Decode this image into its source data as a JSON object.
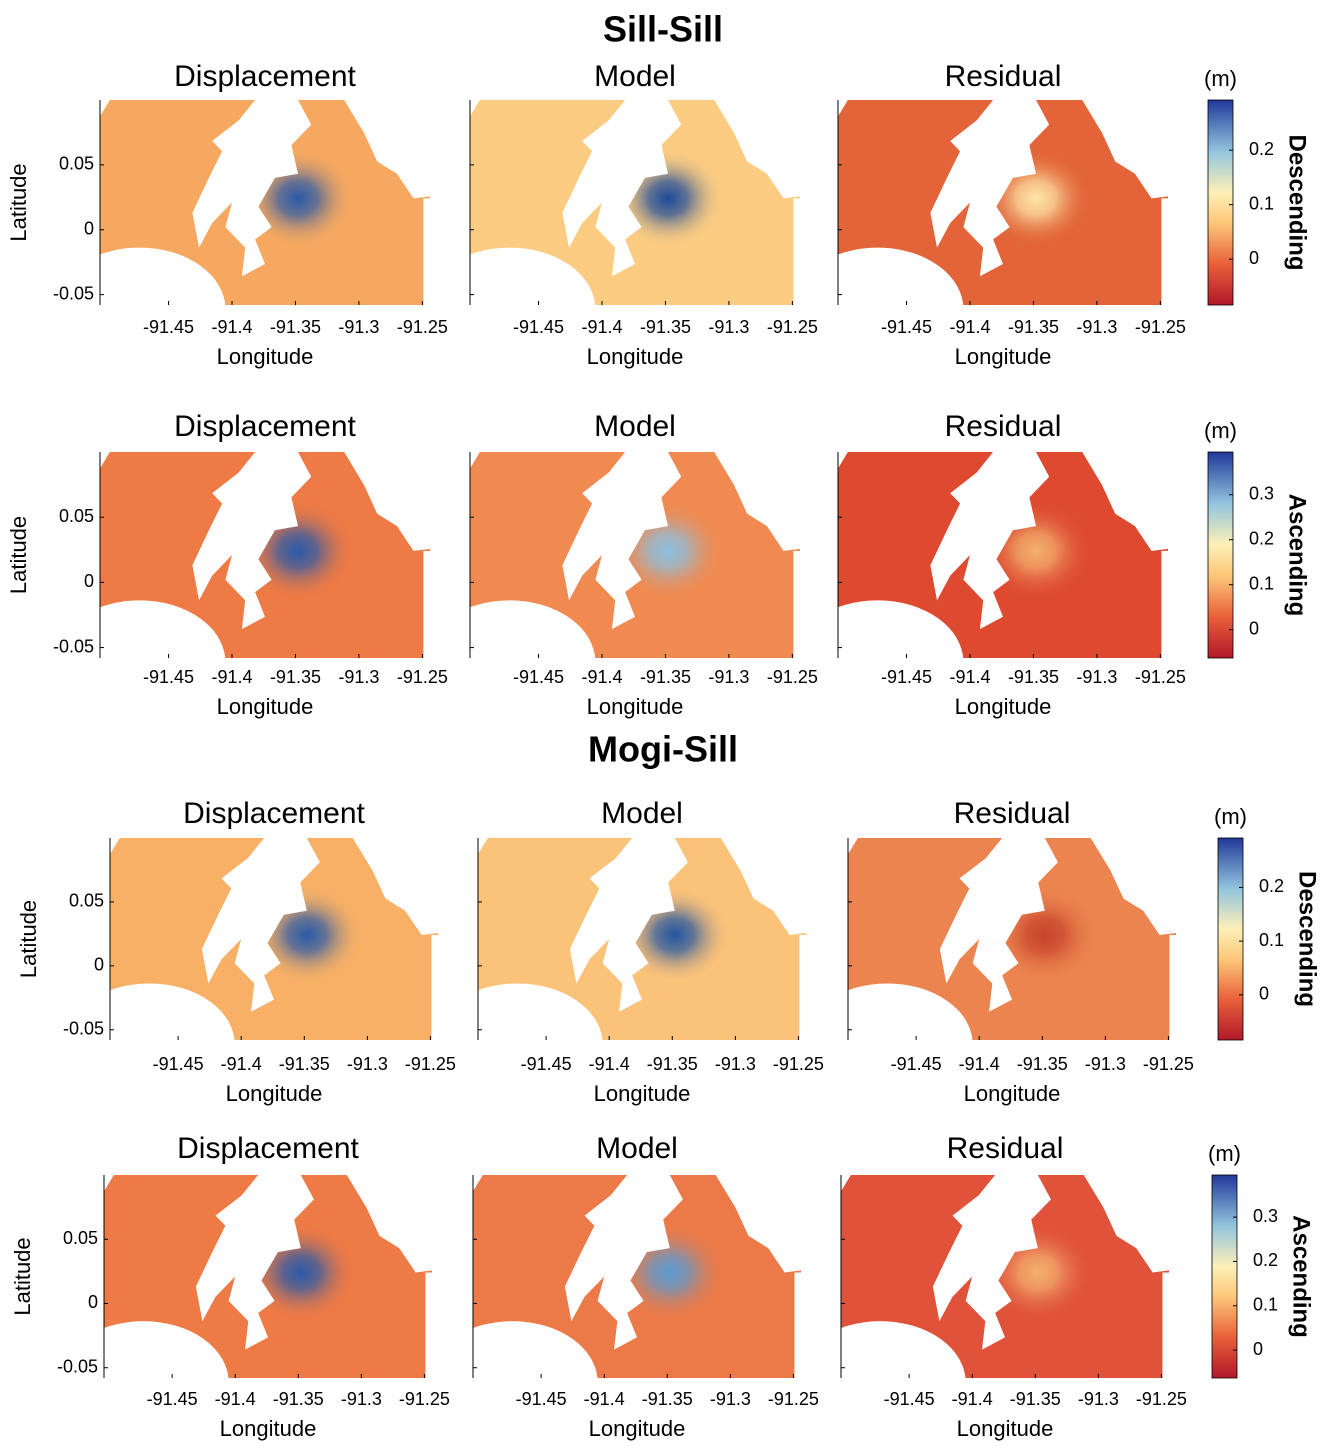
{
  "axes": {
    "xlabel": "Longitude",
    "ylabel": "Latitude",
    "xlim": [
      -91.504,
      -91.244
    ],
    "ylim": [
      -0.058,
      0.1
    ],
    "xticks": [
      -91.45,
      -91.4,
      -91.35,
      -91.3,
      -91.25
    ],
    "yticks": [
      -0.05,
      0,
      0.05
    ]
  },
  "sections": [
    {
      "title": "Sill-Sill",
      "rows": [
        {
          "label": "Descending",
          "colorbar": {
            "unit": "(m)",
            "ylim": [
              -0.084,
              0.292
            ],
            "yticks": [
              0,
              0.1,
              0.2
            ]
          },
          "panels": [
            {
              "title": "Displacement",
              "color": "#f6a860",
              "peak_color": "#2a5aa8"
            },
            {
              "title": "Model",
              "color": "#fbcc82",
              "peak_color": "#1f4c9a"
            },
            {
              "title": "Residual",
              "color": "#e26438",
              "peak_color": "#fde6a8"
            }
          ]
        },
        {
          "label": "Ascending",
          "colorbar": {
            "unit": "(m)",
            "ylim": [
              -0.063,
              0.395
            ],
            "yticks": [
              0,
              0.1,
              0.2,
              0.3
            ]
          },
          "panels": [
            {
              "title": "Displacement",
              "color": "#ee7a45",
              "peak_color": "#2a5aa8"
            },
            {
              "title": "Model",
              "color": "#f08a50",
              "peak_color": "#8cc0e0"
            },
            {
              "title": "Residual",
              "color": "#dd4a30",
              "peak_color": "#f4b070"
            }
          ]
        }
      ]
    },
    {
      "title": "Mogi-Sill",
      "rows": [
        {
          "label": "Descending",
          "colorbar": {
            "unit": "(m)",
            "ylim": [
              -0.084,
              0.292
            ],
            "yticks": [
              0,
              0.1,
              0.2
            ]
          },
          "panels": [
            {
              "title": "Displacement",
              "color": "#f7b066",
              "peak_color": "#2a5aa8"
            },
            {
              "title": "Model",
              "color": "#fbc27a",
              "peak_color": "#2356a2"
            },
            {
              "title": "Residual",
              "color": "#ec8450",
              "peak_color": "#c8432c"
            }
          ]
        },
        {
          "label": "Ascending",
          "colorbar": {
            "unit": "(m)",
            "ylim": [
              -0.063,
              0.395
            ],
            "yticks": [
              0,
              0.1,
              0.2,
              0.3
            ]
          },
          "panels": [
            {
              "title": "Displacement",
              "color": "#ee7a45",
              "peak_color": "#2a5aa8"
            },
            {
              "title": "Model",
              "color": "#ec7a48",
              "peak_color": "#5c9ad0"
            },
            {
              "title": "Residual",
              "color": "#e0523a",
              "peak_color": "#f4b070"
            }
          ]
        }
      ]
    }
  ]
}
